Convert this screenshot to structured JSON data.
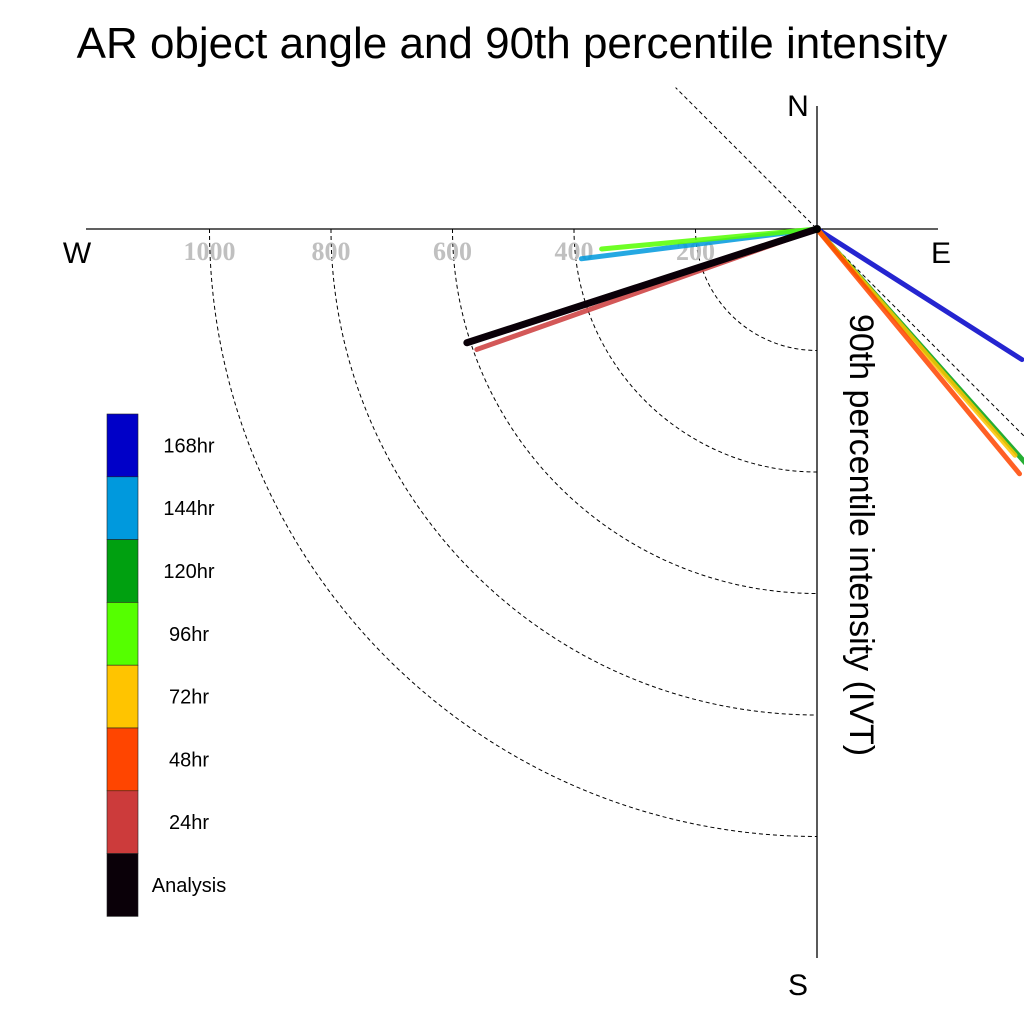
{
  "chart_data": {
    "type": "polar-vector",
    "title": "AR object angle and 90th percentile intensity",
    "axis_label": "90th percentile intensity (IVT)",
    "compass": {
      "N": "N",
      "E": "E",
      "S": "S",
      "W": "W"
    },
    "radial_ticks": [
      200,
      400,
      600,
      800,
      1000
    ],
    "radial_tick_labels": [
      "200",
      "400",
      "600",
      "800",
      "1000"
    ],
    "grid": true,
    "legend_position": "left",
    "series": [
      {
        "name": "Analysis",
        "color": "#0a0008",
        "angle_deg": 108.0,
        "intensity": 606
      },
      {
        "name": "24hr",
        "color": "#cc3b3b",
        "angle_deg": 109.5,
        "intensity": 594
      },
      {
        "name": "48hr",
        "color": "#ff4500",
        "angle_deg": 219.6,
        "intensity": 523
      },
      {
        "name": "72hr",
        "color": "#ffc400",
        "angle_deg": 221.2,
        "intensity": 495
      },
      {
        "name": "96hr",
        "color": "#55ff00",
        "angle_deg": 95.3,
        "intensity": 356
      },
      {
        "name": "120hr",
        "color": "#00a010",
        "angle_deg": 221.7,
        "intensity": 518
      },
      {
        "name": "144hr",
        "color": "#0099dd",
        "angle_deg": 97.2,
        "intensity": 391
      },
      {
        "name": "168hr",
        "color": "#0000c8",
        "angle_deg": 237.5,
        "intensity": 400
      }
    ],
    "legend_order": [
      "168hr",
      "144hr",
      "120hr",
      "96hr",
      "72hr",
      "48hr",
      "24hr",
      "Analysis"
    ]
  }
}
